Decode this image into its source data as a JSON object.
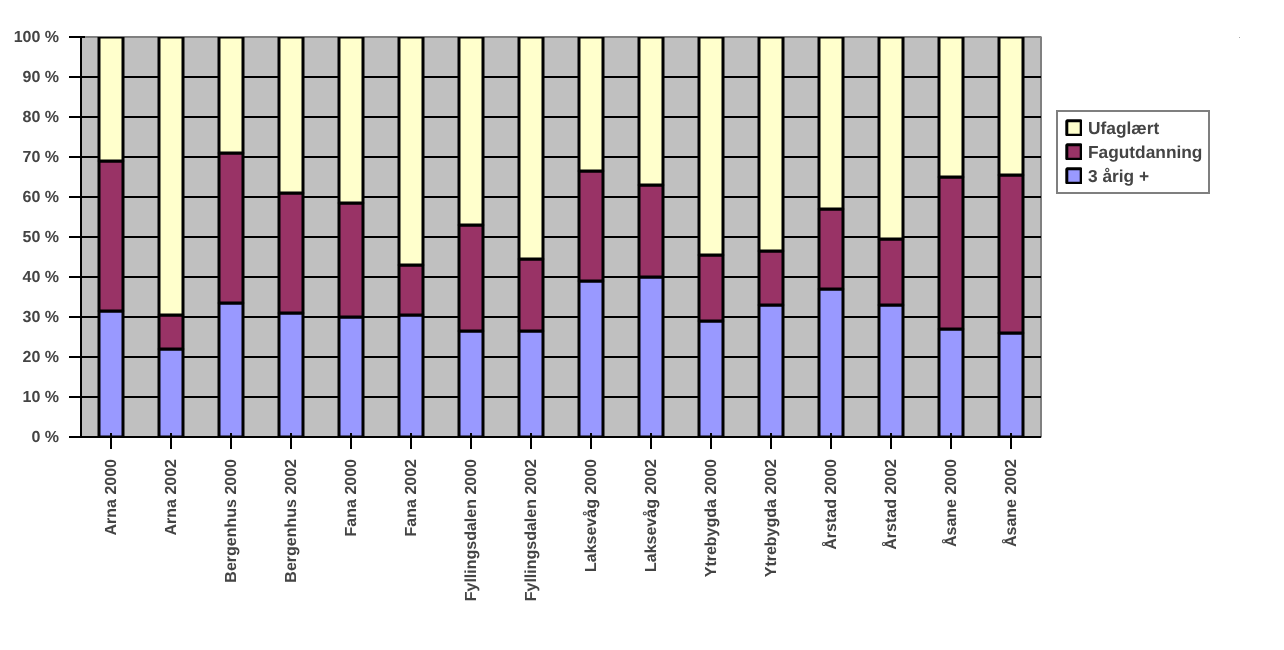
{
  "chart_data": {
    "type": "bar",
    "stacked": true,
    "categories": [
      "Arna 2000",
      "Arna 2002",
      "Bergenhus 2000",
      "Bergenhus 2002",
      "Fana 2000",
      "Fana 2002",
      "Fyllingsdalen 2000",
      "Fyllingsdalen 2002",
      "Laksevåg 2000",
      "Laksevåg 2002",
      "Ytrebygda 2000",
      "Ytrebygda 2002",
      "Årstad 2000",
      "Årstad 2002",
      "Åsane 2000",
      "Åsane 2002"
    ],
    "series": [
      {
        "name": "3 årig +",
        "color": "#9999ff",
        "values": [
          31.5,
          22,
          33.5,
          31,
          30,
          30.5,
          26.5,
          26.5,
          39,
          40,
          29,
          33,
          37,
          33,
          27,
          26
        ]
      },
      {
        "name": "Fagutdanning",
        "color": "#993366",
        "values": [
          37.5,
          8.5,
          37.5,
          30,
          28.5,
          12.5,
          26.5,
          18,
          27.5,
          23,
          16.5,
          13.5,
          20,
          16.5,
          38,
          39.5
        ]
      },
      {
        "name": "Ufaglært",
        "color": "#ffffcc",
        "values": [
          31,
          69.5,
          29,
          39,
          41.5,
          57,
          47,
          55.5,
          33.5,
          37,
          54.5,
          53.5,
          43,
          50.5,
          35,
          34.5
        ]
      }
    ],
    "ylim": [
      0,
      100
    ],
    "yticks": [
      {
        "value": 0,
        "label": "0 %"
      },
      {
        "value": 10,
        "label": "10 %"
      },
      {
        "value": 20,
        "label": "20 %"
      },
      {
        "value": 30,
        "label": "30 %"
      },
      {
        "value": 40,
        "label": "40 %"
      },
      {
        "value": 50,
        "label": "50 %"
      },
      {
        "value": 60,
        "label": "60 %"
      },
      {
        "value": 70,
        "label": "70 %"
      },
      {
        "value": 80,
        "label": "80 %"
      },
      {
        "value": 90,
        "label": "90 %"
      },
      {
        "value": 100,
        "label": "100 %"
      }
    ],
    "grid": "y",
    "legend": "right"
  }
}
